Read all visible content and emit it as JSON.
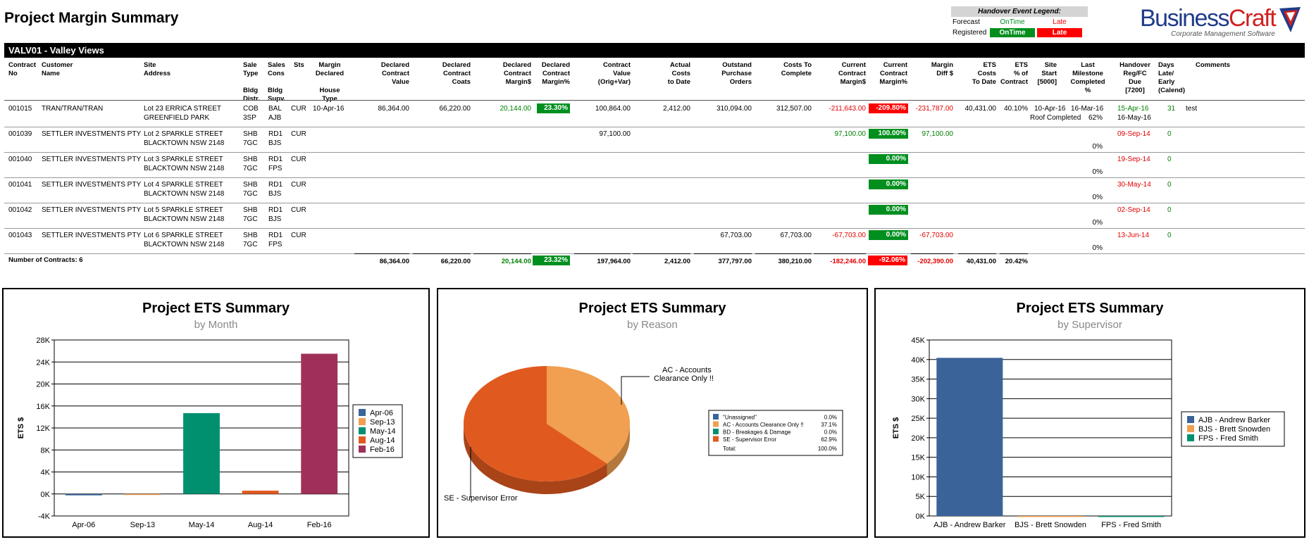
{
  "page": {
    "title": "Project Margin Summary"
  },
  "event_legend": {
    "title": "Handover Event Legend:",
    "rows": [
      {
        "label": "Forecast",
        "ontime": "OnTime",
        "late": "Late"
      },
      {
        "label": "Registered",
        "ontime": "OnTime",
        "late": "Late"
      }
    ]
  },
  "logo": {
    "name_a": "Business",
    "name_b": "Craft",
    "tagline": "Corporate Management Software"
  },
  "project": {
    "band_title": "VALV01 - Valley Views"
  },
  "columns": {
    "contract_no": "Contract\nNo",
    "customer": "Customer\nName",
    "site": "Site\nAddress",
    "sale_type": "Sale\nType\n\nBldg\nDistr.",
    "sales_cons": "Sales\nCons\n\nBldg\nSupv.",
    "sts": "Sts",
    "margin_declared": "Margin\nDeclared\n\nHouse\nType",
    "decl_value": "Declared\nContract\nValue",
    "decl_costs": "Declared\nContract\nCoats",
    "decl_margin": "Declared\nContract\nMargin$",
    "decl_margin_pct": "Declared\nContract\nMargin%",
    "contract_value": "Contract\nValue\n(Orig+Var)",
    "actual_costs": "Actual\nCosts\nto Date",
    "outstanding_po": "Outstand\nPurchase\nOrders",
    "costs_to_complete": "Costs To\nComplete",
    "curr_margin": "Current\nContract\nMargin$",
    "curr_margin_pct": "Current\nContract\nMargin%",
    "margin_diff": "Margin\nDiff $",
    "ets_costs": "ETS\nCosts\nTo Date",
    "ets_pct": "ETS\n% of\nContract",
    "site_start": "Site\nStart\n[5000]",
    "last_milestone": "Last\nMilestone\nCompleted\n%",
    "handover": "Handover\nReg/FC\nDue\n[7200]",
    "days": "Days\nLate/\nEarly\n(Calend)",
    "comments": "Comments"
  },
  "rows": [
    {
      "contract_no": "001015",
      "customer": "TRAN/TRAN/TRAN",
      "site1": "Lot 23 ERRICA STREET",
      "site2": "GREENFIELD PARK",
      "sale1": "COB",
      "sale2": "3SP",
      "cons1": "BAL",
      "cons2": "AJB",
      "sts": "CUR",
      "margin_declared": "10-Apr-16",
      "decl_value": "86,364.00",
      "decl_costs": "66,220.00",
      "decl_margin": "20,144.00",
      "decl_margin_pct": "23.30%",
      "contract_value": "100,864.00",
      "actual_costs": "2,412.00",
      "outstanding_po": "310,094.00",
      "costs_to_complete": "312,507.00",
      "curr_margin": "-211,643.00",
      "curr_margin_pct": "-209.80%",
      "margin_diff": "-231,787.00",
      "ets_costs": "40,431.00",
      "ets_pct": "40.10%",
      "site_start": "10-Apr-16",
      "milestone": "16-Mar-16",
      "milestone_name": "Roof Completed",
      "milestone_pct": "62%",
      "handover1": "15-Apr-16",
      "handover2": "16-May-16",
      "days": "31",
      "comments": "test"
    },
    {
      "contract_no": "001039",
      "customer": "SETTLER INVESTMENTS PTY",
      "site1": "Lot 2 SPARKLE STREET",
      "site2": "BLACKTOWN NSW 2148",
      "sale1": "SHB",
      "sale2": "7GC",
      "cons1": "RD1",
      "cons2": "BJS",
      "sts": "CUR",
      "contract_value": "97,100.00",
      "curr_margin": "97,100.00",
      "curr_margin_pct": "100.00%",
      "margin_diff": "97,100.00",
      "milestone_pct": "0%",
      "handover1": "09-Sep-14",
      "days": "0"
    },
    {
      "contract_no": "001040",
      "customer": "SETTLER INVESTMENTS PTY",
      "site1": "Lot 3 SPARKLE STREET",
      "site2": "BLACKTOWN NSW 2148",
      "sale1": "SHB",
      "sale2": "7GC",
      "cons1": "RD1",
      "cons2": "FPS",
      "sts": "CUR",
      "curr_margin_pct": "0.00%",
      "milestone_pct": "0%",
      "handover1": "19-Sep-14",
      "days": "0"
    },
    {
      "contract_no": "001041",
      "customer": "SETTLER INVESTMENTS PTY",
      "site1": "Lot 4 SPARKLE STREET",
      "site2": "BLACKTOWN NSW 2148",
      "sale1": "SHB",
      "sale2": "7GC",
      "cons1": "RD1",
      "cons2": "BJS",
      "sts": "CUR",
      "curr_margin_pct": "0.00%",
      "milestone_pct": "0%",
      "handover1": "30-May-14",
      "days": "0"
    },
    {
      "contract_no": "001042",
      "customer": "SETTLER INVESTMENTS PTY",
      "site1": "Lot 5 SPARKLE STREET",
      "site2": "BLACKTOWN NSW 2148",
      "sale1": "SHB",
      "sale2": "7GC",
      "cons1": "RD1",
      "cons2": "BJS",
      "sts": "CUR",
      "curr_margin_pct": "0.00%",
      "milestone_pct": "0%",
      "handover1": "02-Sep-14",
      "days": "0"
    },
    {
      "contract_no": "001043",
      "customer": "SETTLER INVESTMENTS PTY",
      "site1": "Lot 6 SPARKLE STREET",
      "site2": "BLACKTOWN NSW 2148",
      "sale1": "SHB",
      "sale2": "7GC",
      "cons1": "RD1",
      "cons2": "FPS",
      "sts": "CUR",
      "outstanding_po": "67,703.00",
      "costs_to_complete": "67,703.00",
      "curr_margin": "-67,703.00",
      "curr_margin_pct": "0.00%",
      "margin_diff": "-67,703.00",
      "milestone_pct": "0%",
      "handover1": "13-Jun-14",
      "days": "0"
    }
  ],
  "totals": {
    "label": "Number of Contracts: 6",
    "decl_value": "86,364.00",
    "decl_costs": "66,220.00",
    "decl_margin": "20,144.00",
    "decl_margin_pct": "23.32%",
    "contract_value": "197,964.00",
    "actual_costs": "2,412.00",
    "outstanding_po": "377,797.00",
    "costs_to_complete": "380,210.00",
    "curr_margin": "-182,246.00",
    "curr_margin_pct": "-92.06%",
    "margin_diff": "-202,390.00",
    "ets_costs": "40,431.00",
    "ets_pct": "20.42%"
  },
  "colors": {
    "green": "#008f1e",
    "red": "#ff0000",
    "blue": "#3a6399",
    "orange": "#f0a050",
    "teal": "#009070",
    "dark_orange": "#e05a20",
    "maroon": "#a0305a"
  },
  "chart_data": [
    {
      "type": "bar",
      "title": "Project ETS Summary",
      "subtitle": "by Month",
      "ylabel": "ETS $",
      "ylim": [
        -4000,
        28000
      ],
      "yticks": [
        "-4K",
        "0K",
        "4K",
        "8K",
        "12K",
        "16K",
        "20K",
        "24K",
        "28K"
      ],
      "categories": [
        "Apr-06",
        "Sep-13",
        "May-14",
        "Aug-14",
        "Feb-16"
      ],
      "values": [
        -250,
        -150,
        14700,
        600,
        25500
      ],
      "colors": [
        "#3a6399",
        "#f0a050",
        "#009070",
        "#e05a20",
        "#a0305a"
      ],
      "legend_placement": "right"
    },
    {
      "type": "pie",
      "title": "Project ETS Summary",
      "subtitle": "by Reason",
      "slices": [
        {
          "label": "\"Unassigned\"",
          "value": 0.0,
          "pct": "0.0%",
          "color": "#3a6399"
        },
        {
          "label": "AC - Accounts Clearance Only !!",
          "value": 37.1,
          "pct": "37.1%",
          "color": "#f0a050"
        },
        {
          "label": "BD - Breakages & Damage",
          "value": 0.0,
          "pct": "0.0%",
          "color": "#009070"
        },
        {
          "label": "SE - Supervisor Error",
          "value": 62.9,
          "pct": "62.9%",
          "color": "#e05a20"
        }
      ],
      "callout_ac": [
        "AC - Accounts",
        "Clearance Only !!"
      ],
      "callout_se": "SE - Supervisor Error",
      "total_label": "Total:",
      "total_pct": "100.0%",
      "legend_placement": "right"
    },
    {
      "type": "bar",
      "title": "Project ETS Summary",
      "subtitle": "by Supervisor",
      "ylabel": "ETS $",
      "ylim": [
        0,
        45000
      ],
      "yticks": [
        "0K",
        "5K",
        "10K",
        "15K",
        "20K",
        "25K",
        "30K",
        "35K",
        "40K",
        "45K"
      ],
      "categories": [
        "AJB - Andrew Barker",
        "BJS - Brett Snowden",
        "FPS - Fred Smith"
      ],
      "values": [
        40431,
        0,
        0
      ],
      "colors": [
        "#3a6399",
        "#f0a050",
        "#009070"
      ],
      "legend_placement": "right"
    }
  ]
}
